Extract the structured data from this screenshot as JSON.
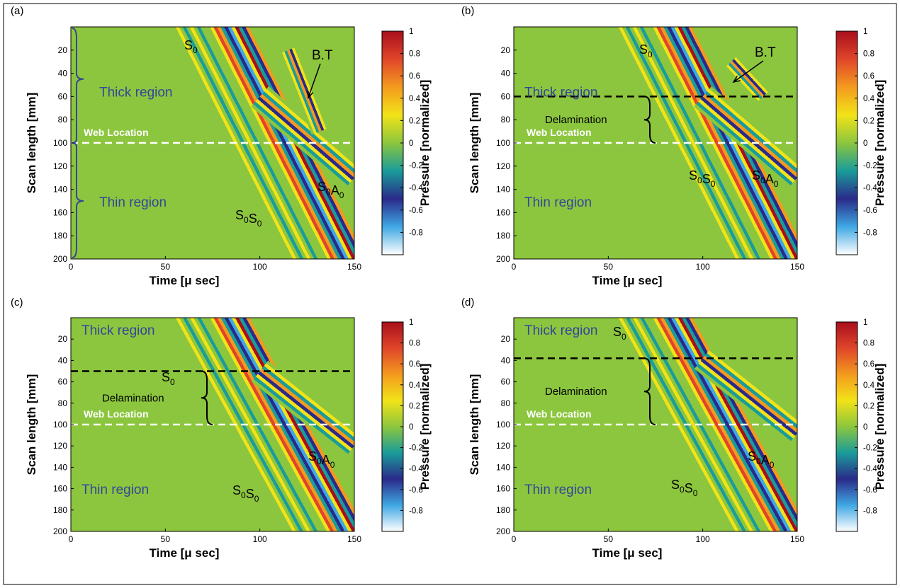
{
  "chart_data": [
    {
      "type": "heatmap",
      "panel_label": "(a)",
      "xlabel": "Time [μ sec]",
      "ylabel": "Scan length [mm]",
      "xlim": [
        0,
        150
      ],
      "ylim": [
        200,
        0
      ],
      "x_ticks": [
        0,
        50,
        100,
        150
      ],
      "y_ticks": [
        20,
        40,
        60,
        80,
        100,
        120,
        140,
        160,
        180,
        200
      ],
      "colorbar": {
        "label": "Pressure [normalized]",
        "range": [
          -1,
          1
        ],
        "ticks": [
          1,
          0.8,
          0.6,
          0.4,
          0.2,
          0,
          -0.2,
          -0.4,
          -0.6,
          -0.8
        ]
      },
      "web_location_mm": 100,
      "web_location_label": "Web Location",
      "delamination_mm": null,
      "delamination_label": "",
      "regions": [
        "Thick region",
        "Thin region"
      ],
      "modes": [
        "S0",
        "B.T",
        "S0S0",
        "S0A0"
      ]
    },
    {
      "type": "heatmap",
      "panel_label": "(b)",
      "xlabel": "Time [μ sec]",
      "ylabel": "Scan length [mm]",
      "xlim": [
        0,
        150
      ],
      "ylim": [
        200,
        0
      ],
      "x_ticks": [
        0,
        50,
        100,
        150
      ],
      "y_ticks": [
        20,
        40,
        60,
        80,
        100,
        120,
        140,
        160,
        180,
        200
      ],
      "colorbar": {
        "label": "Pressure [normalized]",
        "range": [
          -1,
          1
        ],
        "ticks": [
          1,
          0.8,
          0.6,
          0.4,
          0.2,
          0,
          -0.2,
          -0.4,
          -0.6,
          -0.8
        ]
      },
      "web_location_mm": 100,
      "web_location_label": "Web Location",
      "delamination_mm": 60,
      "delamination_label": "Delamination",
      "regions": [
        "Thick region",
        "Thin region"
      ],
      "modes": [
        "S0",
        "B.T",
        "S0S0",
        "S0A0"
      ]
    },
    {
      "type": "heatmap",
      "panel_label": "(c)",
      "xlabel": "Time [μ sec]",
      "ylabel": "Scan length [mm]",
      "xlim": [
        0,
        150
      ],
      "ylim": [
        200,
        0
      ],
      "x_ticks": [
        0,
        50,
        100,
        150
      ],
      "y_ticks": [
        20,
        40,
        60,
        80,
        100,
        120,
        140,
        160,
        180,
        200
      ],
      "colorbar": {
        "label": "Pressure [normalized]",
        "range": [
          -1,
          1
        ],
        "ticks": [
          1,
          0.8,
          0.6,
          0.4,
          0.2,
          0,
          -0.2,
          -0.4,
          -0.6,
          -0.8
        ]
      },
      "web_location_mm": 100,
      "web_location_label": "Web Location",
      "delamination_mm": 50,
      "delamination_label": "Delamination",
      "regions": [
        "Thick region",
        "Thin region"
      ],
      "modes": [
        "S0",
        "S0S0",
        "S0A0"
      ]
    },
    {
      "type": "heatmap",
      "panel_label": "(d)",
      "xlabel": "Time [μ sec]",
      "ylabel": "Scan length [mm]",
      "xlim": [
        0,
        150
      ],
      "ylim": [
        200,
        0
      ],
      "x_ticks": [
        0,
        50,
        100,
        150
      ],
      "y_ticks": [
        20,
        40,
        60,
        80,
        100,
        120,
        140,
        160,
        180,
        200
      ],
      "colorbar": {
        "label": "Pressure [normalized]",
        "range": [
          -1,
          1
        ],
        "ticks": [
          1,
          0.8,
          0.6,
          0.4,
          0.2,
          0,
          -0.2,
          -0.4,
          -0.6,
          -0.8
        ]
      },
      "web_location_mm": 100,
      "web_location_label": "Web Location",
      "delamination_mm": 38,
      "delamination_label": "Delamination",
      "regions": [
        "Thick region",
        "Thin region"
      ],
      "modes": [
        "S0",
        "S0S0",
        "S0A0"
      ]
    }
  ],
  "colors": {
    "background": "#8cc63e",
    "web_line": "#ffffff",
    "delam_line": "#000000",
    "region_text": "#35459b",
    "colormap": [
      "#ffffff",
      "#3fa8e4",
      "#2a2a8a",
      "#1a9c9a",
      "#8cc63e",
      "#f2e318",
      "#f39a1e",
      "#e0452a",
      "#a80f1c"
    ]
  }
}
